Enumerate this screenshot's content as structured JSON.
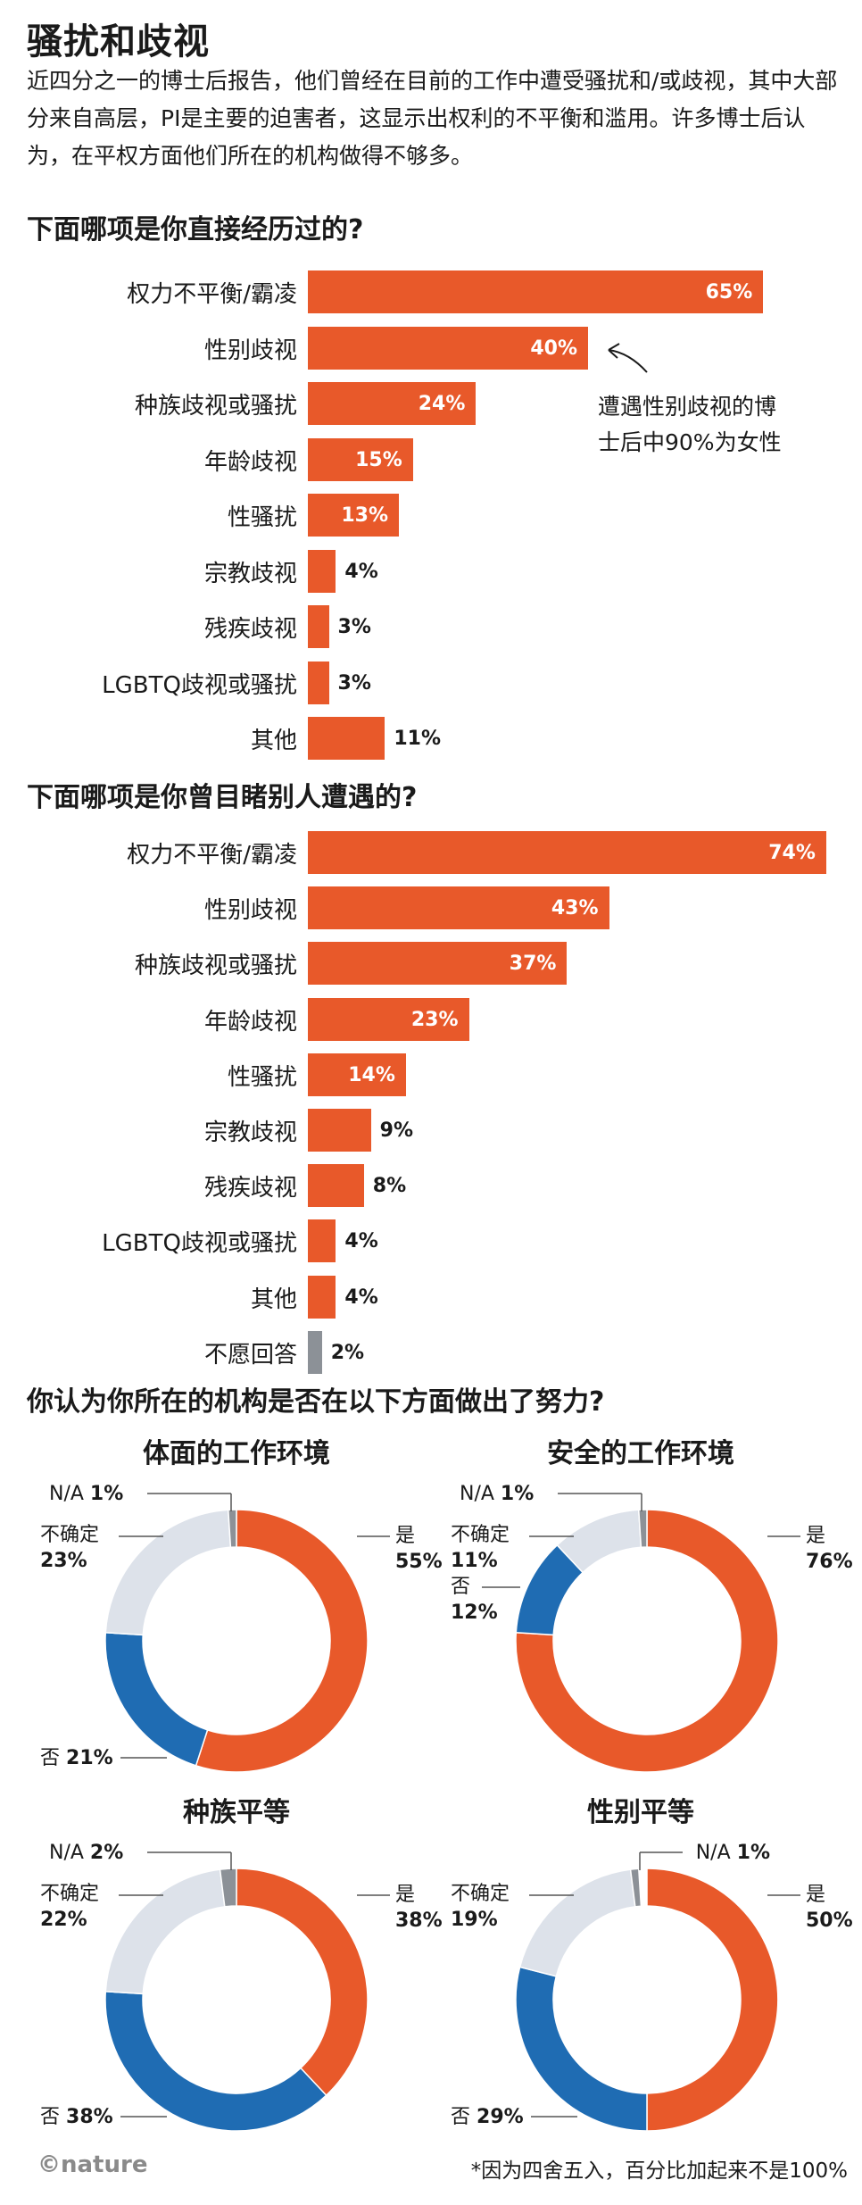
{
  "title": "骚扰和歧视",
  "intro": "近四分之一的博士后报告，他们曾经在目前的工作中遭受骚扰和/或歧视，其中大部分来自高层，PI是主要的迫害者，这显示出权利的不平衡和滥用。许多博士后认为，在平权方面他们所在的机构做得不够多。",
  "colors": {
    "orange": "#e8592a",
    "blue": "#1f6cb3",
    "light": "#dde2ea",
    "gray": "#8c9197"
  },
  "chart_data": [
    {
      "type": "bar",
      "orientation": "horizontal",
      "title": "下面哪项是你直接经历过的?",
      "categories": [
        "权力不平衡/霸凌",
        "性别歧视",
        "种族歧视或骚扰",
        "年龄歧视",
        "性骚扰",
        "宗教歧视",
        "残疾歧视",
        "LGBTQ歧视或骚扰",
        "其他"
      ],
      "values": [
        65,
        40,
        24,
        15,
        13,
        4,
        3,
        3,
        11
      ],
      "labels": [
        "65%",
        "40%",
        "24%",
        "15%",
        "13%",
        "4%",
        "3%",
        "3%",
        "11%"
      ],
      "annotation": [
        "遭遇性别歧视的博",
        "士后中90%为女性"
      ]
    },
    {
      "type": "bar",
      "orientation": "horizontal",
      "title": "下面哪项是你曾目睹别人遭遇的?",
      "categories": [
        "权力不平衡/霸凌",
        "性别歧视",
        "种族歧视或骚扰",
        "年龄歧视",
        "性骚扰",
        "宗教歧视",
        "残疾歧视",
        "LGBTQ歧视或骚扰",
        "其他",
        "不愿回答"
      ],
      "values": [
        74,
        43,
        37,
        23,
        14,
        9,
        8,
        4,
        4,
        2
      ],
      "labels": [
        "74%",
        "43%",
        "37%",
        "23%",
        "14%",
        "9%",
        "8%",
        "4%",
        "4%",
        "2%"
      ]
    },
    {
      "type": "pie",
      "section_title": "你认为你所在的机构是否在以下方面做出了努力?",
      "title": "体面的工作环境",
      "slices": [
        {
          "label": "是",
          "value": 55,
          "text": "55%"
        },
        {
          "label": "否",
          "value": 21,
          "text": "21%"
        },
        {
          "label": "不确定",
          "value": 23,
          "text": "23%"
        },
        {
          "label": "N/A",
          "value": 1,
          "text": "1%"
        }
      ]
    },
    {
      "type": "pie",
      "title": "安全的工作环境",
      "slices": [
        {
          "label": "是",
          "value": 76,
          "text": "76%"
        },
        {
          "label": "否",
          "value": 12,
          "text": "12%"
        },
        {
          "label": "不确定",
          "value": 11,
          "text": "11%"
        },
        {
          "label": "N/A",
          "value": 1,
          "text": "1%"
        }
      ]
    },
    {
      "type": "pie",
      "title": "种族平等",
      "slices": [
        {
          "label": "是",
          "value": 38,
          "text": "38%"
        },
        {
          "label": "否",
          "value": 38,
          "text": "38%"
        },
        {
          "label": "不确定",
          "value": 22,
          "text": "22%"
        },
        {
          "label": "N/A",
          "value": 2,
          "text": "2%"
        }
      ]
    },
    {
      "type": "pie",
      "title": "性别平等",
      "slices": [
        {
          "label": "是",
          "value": 50,
          "text": "50%"
        },
        {
          "label": "否",
          "value": 29,
          "text": "29%"
        },
        {
          "label": "不确定",
          "value": 19,
          "text": "19%"
        },
        {
          "label": "N/A",
          "value": 1,
          "text": "1%"
        }
      ]
    }
  ],
  "logo": "©nature",
  "footnote": "*因为四舍五入，百分比加起来不是100%"
}
